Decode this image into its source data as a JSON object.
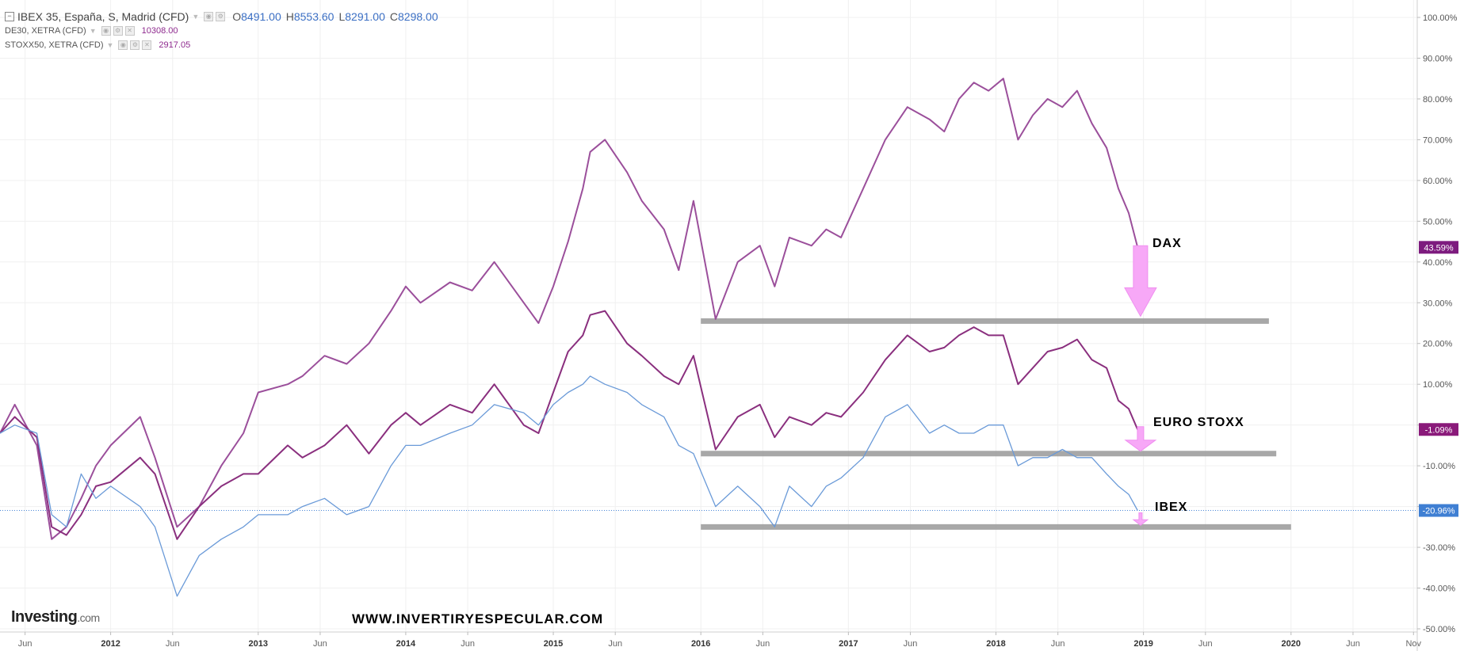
{
  "legend": {
    "main": {
      "name": "IBEX 35, España, S, Madrid (CFD)",
      "o_label": "O",
      "o": "8491.00",
      "h_label": "H",
      "h": "8553.60",
      "l_label": "L",
      "l": "8291.00",
      "c_label": "C",
      "c": "8298.00"
    },
    "dax": {
      "name": "DE30, XETRA (CFD)",
      "value": "10308.00"
    },
    "stoxx": {
      "name": "STOXX50, XETRA (CFD)",
      "value": "2917.05"
    }
  },
  "branding": {
    "logo": "Investing",
    "logo_suffix": ".com",
    "website": "WWW.INVERTIRYESPECULAR.COM"
  },
  "annotations": {
    "dax": "DAX",
    "euro_stoxx": "EURO STOXX",
    "ibex": "IBEX"
  },
  "colors": {
    "dax": "#9b4f9b",
    "stoxx": "#8a2f7e",
    "ibex": "#6a9ad8",
    "support": "#999999",
    "arrow": "#f7a8f7"
  },
  "chart_data": {
    "type": "line",
    "title": "",
    "ylabel": "",
    "xlabel": "",
    "ylim": [
      -50,
      100
    ],
    "xlim": [
      2011.25,
      2020.85
    ],
    "y_ticks": [
      100,
      90,
      80,
      70,
      60,
      50,
      40,
      30,
      20,
      10,
      0,
      -10,
      -20,
      -30,
      -40,
      -50
    ],
    "y_tick_labels": [
      "100.00%",
      "90.00%",
      "80.00%",
      "70.00%",
      "60.00%",
      "50.00%",
      "40.00%",
      "30.00%",
      "20.00%",
      "10.00%",
      "",
      "-10.00%",
      "",
      "-30.00%",
      "-40.00%",
      "-50.00%"
    ],
    "x_ticks": [
      {
        "t": 2011.42,
        "label": "Jun",
        "major": false
      },
      {
        "t": 2012.0,
        "label": "2012",
        "major": true
      },
      {
        "t": 2012.42,
        "label": "Jun",
        "major": false
      },
      {
        "t": 2013.0,
        "label": "2013",
        "major": true
      },
      {
        "t": 2013.42,
        "label": "Jun",
        "major": false
      },
      {
        "t": 2014.0,
        "label": "2014",
        "major": true
      },
      {
        "t": 2014.42,
        "label": "Jun",
        "major": false
      },
      {
        "t": 2015.0,
        "label": "2015",
        "major": true
      },
      {
        "t": 2015.42,
        "label": "Jun",
        "major": false
      },
      {
        "t": 2016.0,
        "label": "2016",
        "major": true
      },
      {
        "t": 2016.42,
        "label": "Jun",
        "major": false
      },
      {
        "t": 2017.0,
        "label": "2017",
        "major": true
      },
      {
        "t": 2017.42,
        "label": "Jun",
        "major": false
      },
      {
        "t": 2018.0,
        "label": "2018",
        "major": true
      },
      {
        "t": 2018.42,
        "label": "Jun",
        "major": false
      },
      {
        "t": 2019.0,
        "label": "2019",
        "major": true
      },
      {
        "t": 2019.42,
        "label": "Jun",
        "major": false
      },
      {
        "t": 2020.0,
        "label": "2020",
        "major": true
      },
      {
        "t": 2020.42,
        "label": "Jun",
        "major": false
      },
      {
        "t": 2020.83,
        "label": "Nov",
        "major": false
      }
    ],
    "series": [
      {
        "key": "dax",
        "name": "DE30, XETRA (CFD)",
        "last_label": "43.59%",
        "x": [
          2011.25,
          2011.35,
          2011.5,
          2011.6,
          2011.7,
          2011.8,
          2011.9,
          2012.0,
          2012.2,
          2012.3,
          2012.45,
          2012.6,
          2012.75,
          2012.9,
          2013.0,
          2013.2,
          2013.3,
          2013.45,
          2013.6,
          2013.75,
          2013.9,
          2014.0,
          2014.1,
          2014.3,
          2014.45,
          2014.6,
          2014.8,
          2014.9,
          2015.0,
          2015.1,
          2015.2,
          2015.25,
          2015.35,
          2015.5,
          2015.6,
          2015.75,
          2015.85,
          2015.95,
          2016.1,
          2016.25,
          2016.4,
          2016.5,
          2016.6,
          2016.75,
          2016.85,
          2016.95,
          2017.1,
          2017.25,
          2017.4,
          2017.55,
          2017.65,
          2017.75,
          2017.85,
          2017.95,
          2018.05,
          2018.15,
          2018.25,
          2018.35,
          2018.45,
          2018.55,
          2018.65,
          2018.75,
          2018.83,
          2018.9,
          2018.96
        ],
        "y": [
          -2,
          5,
          -5,
          -28,
          -25,
          -18,
          -10,
          -5,
          2,
          -8,
          -25,
          -20,
          -10,
          -2,
          8,
          10,
          12,
          17,
          15,
          20,
          28,
          34,
          30,
          35,
          33,
          40,
          30,
          25,
          34,
          45,
          58,
          67,
          70,
          62,
          55,
          48,
          38,
          55,
          26,
          40,
          44,
          34,
          46,
          44,
          48,
          46,
          58,
          70,
          78,
          75,
          72,
          80,
          84,
          82,
          85,
          70,
          76,
          80,
          78,
          82,
          74,
          68,
          58,
          52,
          43.59
        ]
      },
      {
        "key": "stoxx",
        "name": "STOXX50, XETRA (CFD)",
        "last_label": "-1.09%",
        "x": [
          2011.25,
          2011.35,
          2011.5,
          2011.6,
          2011.7,
          2011.8,
          2011.9,
          2012.0,
          2012.2,
          2012.3,
          2012.45,
          2012.6,
          2012.75,
          2012.9,
          2013.0,
          2013.2,
          2013.3,
          2013.45,
          2013.6,
          2013.75,
          2013.9,
          2014.0,
          2014.1,
          2014.3,
          2014.45,
          2014.6,
          2014.8,
          2014.9,
          2015.0,
          2015.1,
          2015.2,
          2015.25,
          2015.35,
          2015.5,
          2015.6,
          2015.75,
          2015.85,
          2015.95,
          2016.1,
          2016.25,
          2016.4,
          2016.5,
          2016.6,
          2016.75,
          2016.85,
          2016.95,
          2017.1,
          2017.25,
          2017.4,
          2017.55,
          2017.65,
          2017.75,
          2017.85,
          2017.95,
          2018.05,
          2018.15,
          2018.25,
          2018.35,
          2018.45,
          2018.55,
          2018.65,
          2018.75,
          2018.83,
          2018.9,
          2018.96
        ],
        "y": [
          -2,
          2,
          -3,
          -25,
          -27,
          -22,
          -15,
          -14,
          -8,
          -12,
          -28,
          -20,
          -15,
          -12,
          -12,
          -5,
          -8,
          -5,
          0,
          -7,
          0,
          3,
          0,
          5,
          3,
          10,
          0,
          -2,
          8,
          18,
          22,
          27,
          28,
          20,
          17,
          12,
          10,
          17,
          -6,
          2,
          5,
          -3,
          2,
          0,
          3,
          2,
          8,
          16,
          22,
          18,
          19,
          22,
          24,
          22,
          22,
          10,
          14,
          18,
          19,
          21,
          16,
          14,
          6,
          4,
          -1.09
        ]
      },
      {
        "key": "ibex",
        "name": "IBEX 35, España, S, Madrid (CFD)",
        "last_label": "-20.96%",
        "x": [
          2011.25,
          2011.35,
          2011.5,
          2011.6,
          2011.7,
          2011.8,
          2011.9,
          2012.0,
          2012.2,
          2012.3,
          2012.45,
          2012.6,
          2012.75,
          2012.9,
          2013.0,
          2013.2,
          2013.3,
          2013.45,
          2013.6,
          2013.75,
          2013.9,
          2014.0,
          2014.1,
          2014.3,
          2014.45,
          2014.6,
          2014.8,
          2014.9,
          2015.0,
          2015.1,
          2015.2,
          2015.25,
          2015.35,
          2015.5,
          2015.6,
          2015.75,
          2015.85,
          2015.95,
          2016.1,
          2016.25,
          2016.4,
          2016.5,
          2016.6,
          2016.75,
          2016.85,
          2016.95,
          2017.1,
          2017.25,
          2017.4,
          2017.55,
          2017.65,
          2017.75,
          2017.85,
          2017.95,
          2018.05,
          2018.15,
          2018.25,
          2018.35,
          2018.45,
          2018.55,
          2018.65,
          2018.75,
          2018.83,
          2018.9,
          2018.96
        ],
        "y": [
          -2,
          0,
          -2,
          -22,
          -25,
          -12,
          -18,
          -15,
          -20,
          -25,
          -42,
          -32,
          -28,
          -25,
          -22,
          -22,
          -20,
          -18,
          -22,
          -20,
          -10,
          -5,
          -5,
          -2,
          0,
          5,
          3,
          0,
          5,
          8,
          10,
          12,
          10,
          8,
          5,
          2,
          -5,
          -7,
          -20,
          -15,
          -20,
          -25,
          -15,
          -20,
          -15,
          -13,
          -8,
          2,
          5,
          -2,
          0,
          -2,
          -2,
          0,
          0,
          -10,
          -8,
          -8,
          -6,
          -8,
          -8,
          -12,
          -15,
          -17,
          -20.96
        ]
      }
    ],
    "support_lines": [
      {
        "x0": 2016.0,
        "x1": 2019.85,
        "y": 25.5
      },
      {
        "x0": 2016.0,
        "x1": 2019.9,
        "y": -7
      },
      {
        "x0": 2016.0,
        "x1": 2020.0,
        "y": -25
      }
    ],
    "price_line": {
      "y": -20.96
    }
  }
}
